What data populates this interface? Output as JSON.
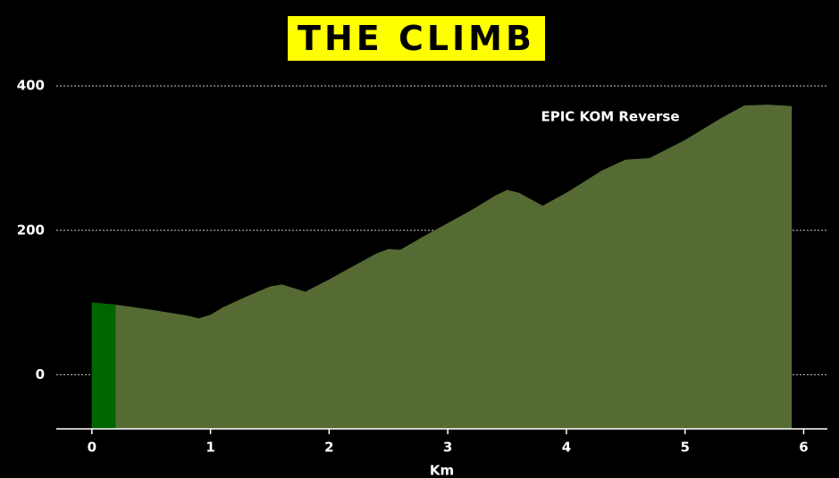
{
  "chart_data": {
    "type": "area",
    "title": "THE CLIMB",
    "annotation": "EPIC KOM Reverse",
    "x_label": "Km",
    "series": [
      {
        "color": "#566b34",
        "x": [
          0,
          0.2,
          0.5,
          0.8,
          0.9,
          1.0,
          1.1,
          1.3,
          1.5,
          1.6,
          1.7,
          1.8,
          2.0,
          2.2,
          2.4,
          2.5,
          2.6,
          2.8,
          3.0,
          3.2,
          3.4,
          3.5,
          3.6,
          3.8,
          4.0,
          4.3,
          4.5,
          4.7,
          5.0,
          5.3,
          5.5,
          5.7,
          5.9
        ],
        "values": [
          100,
          97,
          90,
          82,
          78,
          83,
          93,
          108,
          122,
          125,
          120,
          115,
          132,
          150,
          168,
          174,
          173,
          192,
          210,
          228,
          248,
          256,
          252,
          234,
          252,
          283,
          298,
          300,
          325,
          355,
          373,
          374,
          372
        ]
      },
      {
        "color": "#006400",
        "x": [
          0,
          0.2
        ],
        "values": [
          100,
          97
        ]
      }
    ],
    "xlim": [
      -0.3,
      6.2
    ],
    "xticks": [
      0,
      1,
      2,
      3,
      4,
      5,
      6
    ],
    "ylim": [
      -75,
      420
    ],
    "yticks": [
      0,
      200,
      400
    ],
    "grid": true
  }
}
